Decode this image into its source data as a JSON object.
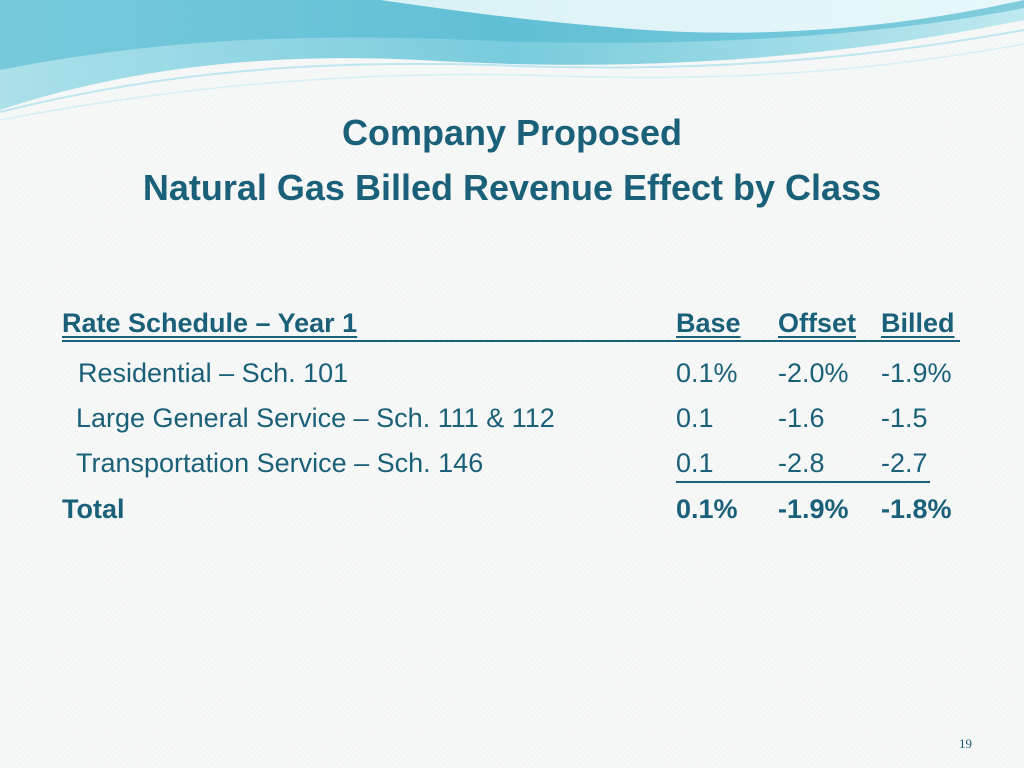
{
  "slide": {
    "title_line1": "Company Proposed",
    "title_line2": "Natural Gas Billed Revenue Effect by Class",
    "page_number": "19"
  },
  "table": {
    "headers": {
      "schedule": "Rate Schedule – Year 1",
      "base": "Base",
      "offset": "Offset",
      "billed": "Billed"
    },
    "rows": [
      {
        "label": "Residential – Sch. 101",
        "base": "0.1%",
        "offset": "-2.0%",
        "billed": "-1.9%"
      },
      {
        "label": "Large General Service – Sch. 111 & 112",
        "base": "0.1",
        "offset": "-1.6",
        "billed": "-1.5"
      },
      {
        "label": "Transportation Service – Sch. 146",
        "base": "0.1",
        "offset": "-2.8",
        "billed": "-2.7"
      }
    ],
    "total": {
      "label": "Total",
      "base": "0.1%",
      "offset": "-1.9%",
      "billed": "-1.8%"
    }
  },
  "colors": {
    "title": "#1b6079",
    "text": "#1b6079",
    "wave_light": "#c6ecf2",
    "wave_mid": "#7dd0df",
    "wave_dark": "#2c9fbd"
  }
}
